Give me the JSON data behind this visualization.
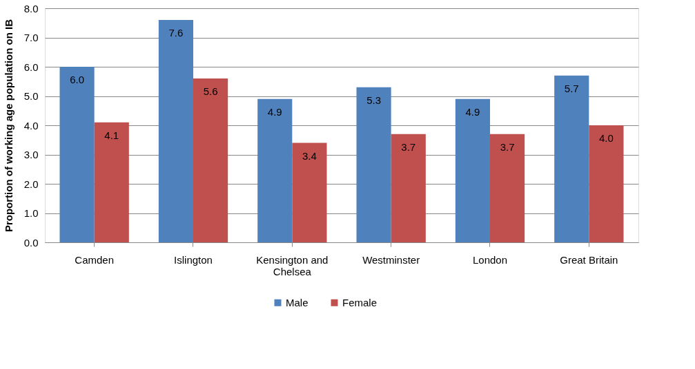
{
  "chart_data": {
    "type": "bar",
    "ylabel": "Proportion of working age population on IB",
    "categories": [
      "Camden",
      "Islington",
      "Kensington and Chelsea",
      "Westminster",
      "London",
      "Great Britain"
    ],
    "series": [
      {
        "name": "Male",
        "color": "#4f81bd",
        "values": [
          6.0,
          7.6,
          4.9,
          5.3,
          4.9,
          5.7
        ],
        "value_labels": [
          "6.0",
          "7.6",
          "4.9",
          "5.3",
          "4.9",
          "5.7"
        ]
      },
      {
        "name": "Female",
        "color": "#c0504d",
        "values": [
          4.1,
          5.6,
          3.4,
          3.7,
          3.7,
          4.0
        ],
        "value_labels": [
          "4.1",
          "5.6",
          "3.4",
          "3.7",
          "3.7",
          "4.0"
        ]
      }
    ],
    "ylim": [
      0,
      8
    ],
    "yticks": [
      {
        "value": 0,
        "label": "0.0"
      },
      {
        "value": 1,
        "label": "1.0"
      },
      {
        "value": 2,
        "label": "2.0"
      },
      {
        "value": 3,
        "label": "3.0"
      },
      {
        "value": 4,
        "label": "4.0"
      },
      {
        "value": 5,
        "label": "5.0"
      },
      {
        "value": 6,
        "label": "6.0"
      },
      {
        "value": 7,
        "label": "7.0"
      },
      {
        "value": 8,
        "label": "8.0"
      }
    ],
    "grid": "y",
    "legend": "bottom"
  }
}
